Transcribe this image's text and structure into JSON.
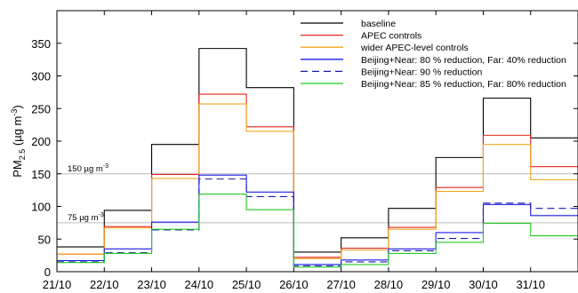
{
  "chart_data": {
    "type": "line",
    "step": true,
    "ylabel": "PM2.5 (µg m-3)",
    "ylabel_parts": {
      "main": "PM",
      "sub": "2.5",
      "unit": "(µg m",
      "exp": "-3",
      "close": ")"
    },
    "ylim": [
      0,
      400
    ],
    "yticks": [
      0,
      50,
      100,
      150,
      200,
      250,
      300,
      350
    ],
    "xlim": [
      0,
      11
    ],
    "x_tick_labels": [
      "21/10",
      "22/10",
      "23/10",
      "24/10",
      "25/10",
      "26/10",
      "27/10",
      "28/10",
      "29/10",
      "30/10",
      "31/10"
    ],
    "grid": false,
    "legend_position": "top-right",
    "reference_lines": [
      {
        "value": 150,
        "label": "150 µg m",
        "exp": "-3",
        "color": "#bbbbbb"
      },
      {
        "value": 75,
        "label": "75 µg m",
        "exp": "-3",
        "color": "#bbbbbb"
      }
    ],
    "series": [
      {
        "name": "baseline",
        "color": "#000000",
        "dash": false,
        "values": [
          38,
          94,
          195,
          342,
          282,
          30,
          52,
          97,
          175,
          266,
          205
        ]
      },
      {
        "name": "APEC controls",
        "color": "#e8251b",
        "dash": false,
        "values": [
          27,
          69,
          149,
          272,
          222,
          22,
          36,
          68,
          129,
          209,
          161
        ]
      },
      {
        "name": "wider APEC-level controls",
        "color": "#f3a71b",
        "dash": false,
        "values": [
          27,
          67,
          143,
          257,
          215,
          20,
          33,
          65,
          123,
          195,
          141
        ]
      },
      {
        "name": "Beijing+Near: 80 % reduction, Far: 40% reduction",
        "color": "#1a1aee",
        "dash": false,
        "values": [
          17,
          35,
          76,
          148,
          122,
          11,
          18,
          35,
          60,
          103,
          86
        ]
      },
      {
        "name": "Beijing+Near: 90 % reduction",
        "color": "#1a1aaa",
        "dash": true,
        "values": [
          15,
          29,
          64,
          142,
          115,
          9,
          15,
          32,
          51,
          105,
          97
        ]
      },
      {
        "name": "Beijing+Near: 85 % reduction, Far: 80% reduction",
        "color": "#22cc22",
        "dash": false,
        "values": [
          14,
          28,
          65,
          119,
          95,
          7,
          11,
          28,
          45,
          74,
          55
        ]
      }
    ]
  }
}
